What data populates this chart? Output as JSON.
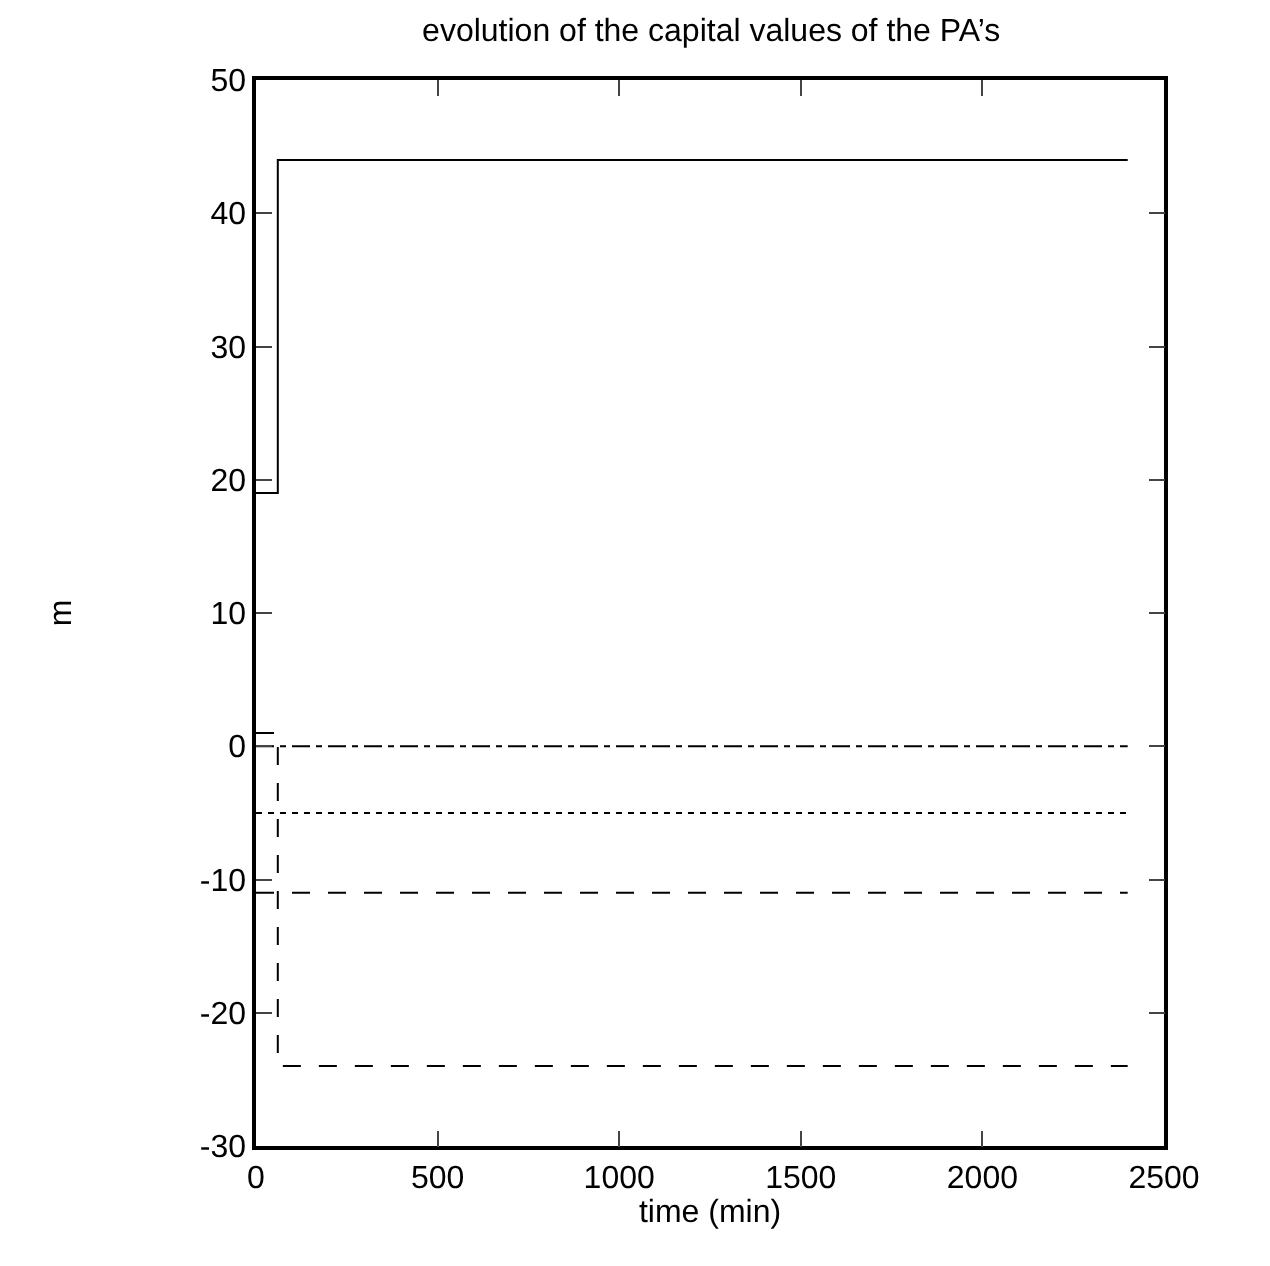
{
  "chart_data": {
    "type": "step",
    "title": "evolution of the capital values of the PA’s",
    "xlabel": "time (min)",
    "ylabel": "m",
    "xlim": [
      0,
      2500
    ],
    "xticks": [
      0,
      500,
      1000,
      1500,
      2000,
      2500
    ],
    "ylim": [
      -30,
      50
    ],
    "yticks": [
      -30,
      -20,
      -10,
      0,
      10,
      20,
      30,
      40,
      50
    ],
    "grid": false,
    "marker": "none",
    "series": [
      {
        "color": "#000000",
        "line_style": "solid",
        "x": [
          0,
          60,
          2400
        ],
        "values": [
          19,
          44,
          44
        ]
      },
      {
        "color": "#000000",
        "line_style": "dashdot",
        "x": [
          0,
          2400
        ],
        "values": [
          0,
          0
        ]
      },
      {
        "color": "#000000",
        "line_style": "dotted",
        "x": [
          0,
          2400
        ],
        "values": [
          -5,
          -5
        ]
      },
      {
        "color": "#000000",
        "line_style": "dashed",
        "x": [
          0,
          2400
        ],
        "values": [
          -11,
          -11
        ]
      },
      {
        "color": "#000000",
        "line_style": "dashed",
        "x": [
          0,
          60,
          2400
        ],
        "values": [
          1,
          -24,
          -24
        ]
      }
    ]
  }
}
